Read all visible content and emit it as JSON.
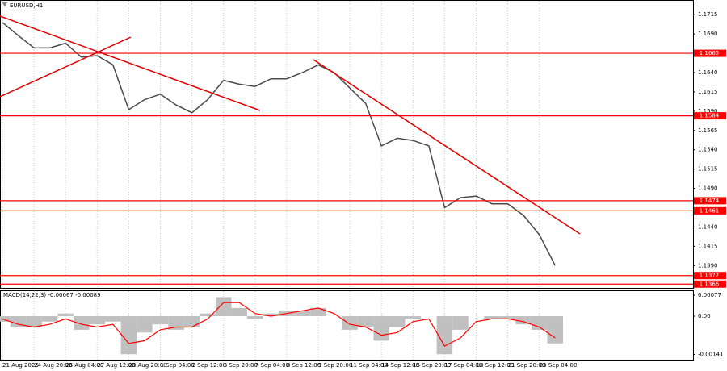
{
  "chart_data": [
    {
      "type": "line",
      "title": "EURUSD,H1",
      "color": "#4a4a4a",
      "categories": [
        "21 Aug 2026",
        null,
        "24 Aug 20:00",
        null,
        "26 Aug 04:00",
        null,
        "27 Aug 12:00",
        null,
        "28 Aug 20:00",
        null,
        "1 Sep 04:00",
        null,
        "2 Sep 12:00",
        null,
        "3 Sep 20:00",
        null,
        "7 Sep 04:00",
        null,
        "8 Sep 12:00",
        null,
        "9 Sep 20:00",
        null,
        "11 Sep 04:00",
        null,
        "14 Sep 12:00",
        null,
        "15 Sep 20:00",
        null,
        "17 Sep 04:00",
        null,
        "18 Sep 12:00",
        null,
        "21 Sep 20:00",
        null,
        "23 Sep 04:00",
        null
      ],
      "values": [
        1.1705,
        1.1688,
        1.1672,
        1.1672,
        1.1678,
        1.166,
        1.1662,
        1.165,
        1.1592,
        1.1605,
        1.1612,
        1.1598,
        1.1588,
        1.1605,
        1.163,
        1.1625,
        1.1622,
        1.1632,
        1.1632,
        1.164,
        1.165,
        1.164,
        1.162,
        1.16,
        1.1545,
        1.1555,
        1.1552,
        1.1545,
        1.1465,
        1.1478,
        1.148,
        1.147,
        1.147,
        1.1455,
        1.143,
        1.139
      ],
      "ylim": [
        1.136,
        1.1733
      ],
      "yticks": [
        1.1715,
        {
          "value": 1.169,
          "label": "1.1690"
        },
        {
          "value": 1.164,
          "label": "1.1640"
        },
        1.1615,
        {
          "value": 1.159,
          "label": "1.1590"
        },
        1.1565,
        {
          "value": 1.154,
          "label": "1.1540"
        },
        1.1515,
        {
          "value": 1.149,
          "label": "1.1490"
        },
        {
          "value": 1.144,
          "label": "1.1440"
        },
        1.1415,
        {
          "value": 1.139,
          "label": "1.1390"
        }
      ],
      "levels": [
        1.1665,
        1.1584,
        1.1474,
        1.1461,
        1.1377,
        1.1366
      ],
      "level_color": "#ff0000",
      "grid": true
    },
    {
      "type": "macd",
      "title": "MACD(14,22,3) -0.00067 -0.00089",
      "color": "#c0c0c0",
      "signal_color": "#ff0000",
      "values": [
        -0.0002,
        -0.0004,
        -0.0004,
        -0.0002,
        0.0001,
        -0.0005,
        -0.0003,
        -0.0002,
        -0.0014,
        -0.0006,
        -0.0003,
        -0.0005,
        -0.0004,
        0.0001,
        0.0007,
        0.0003,
        -0.0001,
        0.0001,
        0.0002,
        0.0002,
        0.0003,
        0,
        -0.0005,
        -0.0004,
        -0.0009,
        -0.0004,
        -0.0001,
        0,
        -0.0014,
        -0.0005,
        0,
        -0.0001,
        -0.0001,
        -0.0003,
        -0.0005,
        -0.001
      ],
      "signal_values": [
        -0.0001,
        -0.0003,
        -0.0004,
        -0.0003,
        -0.0001,
        -0.0003,
        -0.0004,
        -0.0003,
        -0.001,
        -0.0009,
        -0.0005,
        -0.0004,
        -0.0004,
        -0.0001,
        0.0005,
        0.0005,
        0.0001,
        0,
        0.0001,
        0.0002,
        0.0003,
        0.0001,
        -0.0003,
        -0.0004,
        -0.0007,
        -0.0006,
        -0.0002,
        -0.0001,
        -0.0011,
        -0.0008,
        -0.0002,
        -0.0001,
        -0.0001,
        -0.0002,
        -0.0004,
        -0.0008
      ],
      "ylim": [
        -0.00163,
        0.00092
      ],
      "yticks": [
        0.00077,
        {
          "value": 0,
          "label": "0.00"
        },
        -0.00141
      ]
    }
  ]
}
